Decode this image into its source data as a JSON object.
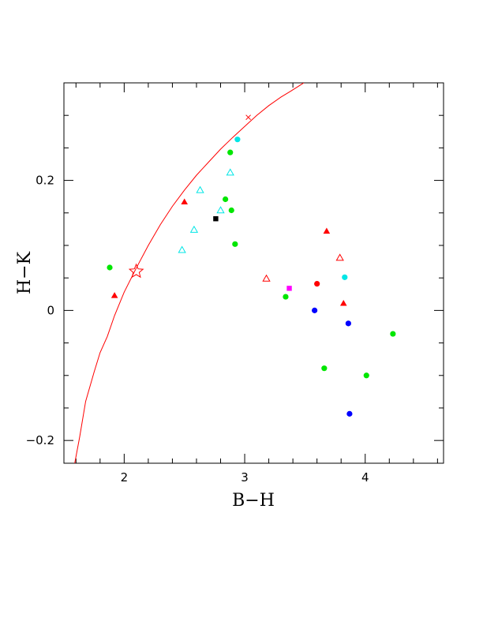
{
  "chart_data": {
    "type": "scatter",
    "title": "",
    "xlabel": "B−H",
    "ylabel": "H−K",
    "xlim": [
      1.5,
      4.65
    ],
    "ylim": [
      -0.235,
      0.35
    ],
    "xticks": [
      {
        "value": 2,
        "label": "2"
      },
      {
        "value": 3,
        "label": "3"
      },
      {
        "value": 4,
        "label": "4"
      }
    ],
    "yticks": [
      {
        "value": -0.2,
        "label": "−0.2"
      },
      {
        "value": 0,
        "label": "0"
      },
      {
        "value": 0.2,
        "label": "0.2"
      }
    ],
    "grid": false,
    "legend": "none",
    "curve": {
      "color": "#ff0000",
      "points": [
        [
          1.59,
          -0.235
        ],
        [
          1.63,
          -0.195
        ],
        [
          1.68,
          -0.14
        ],
        [
          1.75,
          -0.095
        ],
        [
          1.8,
          -0.065
        ],
        [
          1.86,
          -0.04
        ],
        [
          1.92,
          -0.008
        ],
        [
          2.0,
          0.028
        ],
        [
          2.1,
          0.065
        ],
        [
          2.2,
          0.1
        ],
        [
          2.3,
          0.132
        ],
        [
          2.4,
          0.16
        ],
        [
          2.5,
          0.185
        ],
        [
          2.6,
          0.208
        ],
        [
          2.7,
          0.228
        ],
        [
          2.8,
          0.248
        ],
        [
          2.9,
          0.266
        ],
        [
          3.0,
          0.283
        ],
        [
          3.1,
          0.3
        ],
        [
          3.2,
          0.315
        ],
        [
          3.3,
          0.328
        ],
        [
          3.38,
          0.337
        ],
        [
          3.49,
          0.35
        ]
      ]
    },
    "points": [
      {
        "x": 2.1,
        "y": 0.06,
        "marker": "star-open",
        "color": "#ff0000"
      },
      {
        "x": 3.03,
        "y": 0.297,
        "marker": "cross",
        "color": "#ff0000"
      },
      {
        "x": 1.88,
        "y": 0.066,
        "marker": "circle",
        "color": "#00e600"
      },
      {
        "x": 1.92,
        "y": 0.023,
        "marker": "triangle",
        "color": "#ff0000"
      },
      {
        "x": 2.5,
        "y": 0.167,
        "marker": "triangle",
        "color": "#ff0000"
      },
      {
        "x": 2.48,
        "y": 0.093,
        "marker": "triangle-open",
        "color": "#00e6e6"
      },
      {
        "x": 2.58,
        "y": 0.124,
        "marker": "triangle-open",
        "color": "#00e6e6"
      },
      {
        "x": 2.63,
        "y": 0.185,
        "marker": "triangle-open",
        "color": "#00e6e6"
      },
      {
        "x": 2.76,
        "y": 0.141,
        "marker": "square",
        "color": "#000000"
      },
      {
        "x": 2.8,
        "y": 0.154,
        "marker": "triangle-open",
        "color": "#00e6e6"
      },
      {
        "x": 2.84,
        "y": 0.171,
        "marker": "circle",
        "color": "#00e600"
      },
      {
        "x": 2.88,
        "y": 0.212,
        "marker": "triangle-open",
        "color": "#00e6e6"
      },
      {
        "x": 2.88,
        "y": 0.243,
        "marker": "circle",
        "color": "#00e600"
      },
      {
        "x": 2.89,
        "y": 0.154,
        "marker": "circle",
        "color": "#00e600"
      },
      {
        "x": 2.92,
        "y": 0.102,
        "marker": "circle",
        "color": "#00e600"
      },
      {
        "x": 2.94,
        "y": 0.263,
        "marker": "circle",
        "color": "#00e6e6"
      },
      {
        "x": 3.18,
        "y": 0.049,
        "marker": "triangle-open",
        "color": "#ff0000"
      },
      {
        "x": 3.34,
        "y": 0.021,
        "marker": "circle",
        "color": "#00e600"
      },
      {
        "x": 3.37,
        "y": 0.034,
        "marker": "square",
        "color": "#ff00ff"
      },
      {
        "x": 3.58,
        "y": 0.0,
        "marker": "circle",
        "color": "#0000ff"
      },
      {
        "x": 3.6,
        "y": 0.041,
        "marker": "circle",
        "color": "#ff0000"
      },
      {
        "x": 3.66,
        "y": -0.089,
        "marker": "circle",
        "color": "#00e600"
      },
      {
        "x": 3.68,
        "y": 0.122,
        "marker": "triangle",
        "color": "#ff0000"
      },
      {
        "x": 3.79,
        "y": 0.081,
        "marker": "triangle-open",
        "color": "#ff0000"
      },
      {
        "x": 3.82,
        "y": 0.011,
        "marker": "triangle",
        "color": "#ff0000"
      },
      {
        "x": 3.83,
        "y": 0.051,
        "marker": "circle",
        "color": "#00e6e6"
      },
      {
        "x": 3.86,
        "y": -0.02,
        "marker": "circle",
        "color": "#0000ff"
      },
      {
        "x": 3.87,
        "y": -0.159,
        "marker": "circle",
        "color": "#0000ff"
      },
      {
        "x": 4.01,
        "y": -0.1,
        "marker": "circle",
        "color": "#00e600"
      },
      {
        "x": 4.23,
        "y": -0.036,
        "marker": "circle",
        "color": "#00e600"
      }
    ]
  }
}
